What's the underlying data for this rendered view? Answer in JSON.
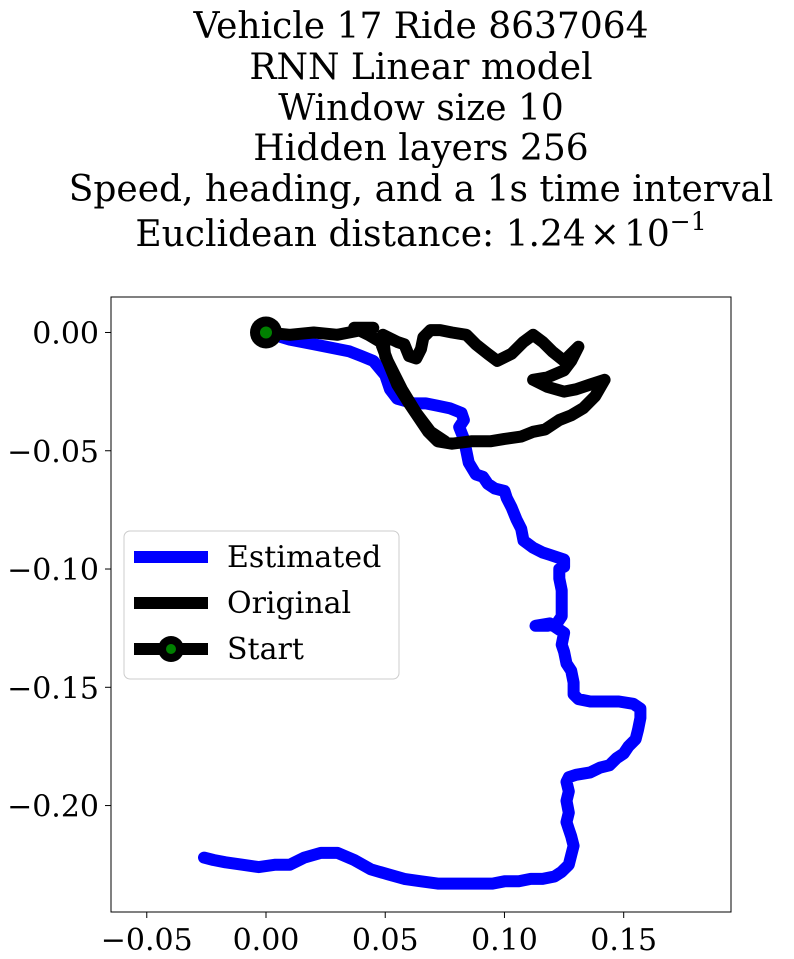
{
  "chart_data": {
    "type": "line",
    "title_lines": [
      "Vehicle 17 Ride 8637064",
      "RNN Linear model",
      "Window size 10",
      "Hidden layers 256",
      "Speed, heading, and a 1s time interval"
    ],
    "metric_label": "Euclidean distance: ",
    "metric_mantissa": "1.24",
    "metric_times": "×",
    "metric_base": "10",
    "metric_exponent": "−1",
    "xlim": [
      -0.065,
      0.195
    ],
    "ylim": [
      -0.245,
      0.015
    ],
    "x_ticks": [
      -0.05,
      0.0,
      0.05,
      0.1,
      0.15
    ],
    "x_tick_labels": [
      "−0.05",
      "0.00",
      "0.05",
      "0.10",
      "0.15"
    ],
    "y_ticks": [
      0.0,
      -0.05,
      -0.1,
      -0.15,
      -0.2
    ],
    "y_tick_labels": [
      "0.00",
      "−0.05",
      "−0.10",
      "−0.15",
      "−0.20"
    ],
    "grid": false,
    "legend_position": "center-left",
    "series": [
      {
        "name": "Estimated",
        "color": "#0000ff",
        "points": [
          [
            0.0,
            0.0
          ],
          [
            0.01,
            -0.003
          ],
          [
            0.02,
            -0.005
          ],
          [
            0.03,
            -0.007
          ],
          [
            0.035,
            -0.008
          ],
          [
            0.04,
            -0.01
          ],
          [
            0.045,
            -0.012
          ],
          [
            0.05,
            -0.018
          ],
          [
            0.052,
            -0.024
          ],
          [
            0.055,
            -0.028
          ],
          [
            0.062,
            -0.03
          ],
          [
            0.067,
            -0.03
          ],
          [
            0.072,
            -0.031
          ],
          [
            0.077,
            -0.032
          ],
          [
            0.082,
            -0.034
          ],
          [
            0.083,
            -0.037
          ],
          [
            0.081,
            -0.04
          ],
          [
            0.083,
            -0.045
          ],
          [
            0.084,
            -0.05
          ],
          [
            0.085,
            -0.055
          ],
          [
            0.088,
            -0.06
          ],
          [
            0.091,
            -0.061
          ],
          [
            0.093,
            -0.064
          ],
          [
            0.096,
            -0.066
          ],
          [
            0.1,
            -0.067
          ],
          [
            0.101,
            -0.07
          ],
          [
            0.103,
            -0.074
          ],
          [
            0.105,
            -0.079
          ],
          [
            0.107,
            -0.083
          ],
          [
            0.108,
            -0.088
          ],
          [
            0.112,
            -0.091
          ],
          [
            0.116,
            -0.093
          ],
          [
            0.119,
            -0.094
          ],
          [
            0.122,
            -0.095
          ],
          [
            0.125,
            -0.096
          ],
          [
            0.125,
            -0.099
          ],
          [
            0.123,
            -0.1
          ],
          [
            0.123,
            -0.104
          ],
          [
            0.124,
            -0.109
          ],
          [
            0.124,
            -0.114
          ],
          [
            0.124,
            -0.12
          ],
          [
            0.122,
            -0.123
          ],
          [
            0.118,
            -0.124
          ],
          [
            0.113,
            -0.124
          ],
          [
            0.119,
            -0.123
          ],
          [
            0.125,
            -0.127
          ],
          [
            0.124,
            -0.132
          ],
          [
            0.125,
            -0.135
          ],
          [
            0.126,
            -0.14
          ],
          [
            0.128,
            -0.143
          ],
          [
            0.129,
            -0.148
          ],
          [
            0.129,
            -0.153
          ],
          [
            0.131,
            -0.155
          ],
          [
            0.136,
            -0.156
          ],
          [
            0.142,
            -0.156
          ],
          [
            0.148,
            -0.156
          ],
          [
            0.154,
            -0.157
          ],
          [
            0.157,
            -0.159
          ],
          [
            0.157,
            -0.163
          ],
          [
            0.156,
            -0.168
          ],
          [
            0.155,
            -0.172
          ],
          [
            0.152,
            -0.175
          ],
          [
            0.15,
            -0.178
          ],
          [
            0.147,
            -0.18
          ],
          [
            0.144,
            -0.183
          ],
          [
            0.14,
            -0.184
          ],
          [
            0.136,
            -0.186
          ],
          [
            0.13,
            -0.187
          ],
          [
            0.127,
            -0.188
          ],
          [
            0.126,
            -0.19
          ],
          [
            0.127,
            -0.194
          ],
          [
            0.126,
            -0.198
          ],
          [
            0.127,
            -0.203
          ],
          [
            0.126,
            -0.207
          ],
          [
            0.127,
            -0.21
          ],
          [
            0.128,
            -0.213
          ],
          [
            0.129,
            -0.217
          ],
          [
            0.128,
            -0.221
          ],
          [
            0.127,
            -0.225
          ],
          [
            0.124,
            -0.228
          ],
          [
            0.121,
            -0.23
          ],
          [
            0.116,
            -0.231
          ],
          [
            0.111,
            -0.231
          ],
          [
            0.106,
            -0.232
          ],
          [
            0.1,
            -0.232
          ],
          [
            0.095,
            -0.233
          ],
          [
            0.09,
            -0.233
          ],
          [
            0.084,
            -0.233
          ],
          [
            0.078,
            -0.233
          ],
          [
            0.072,
            -0.233
          ],
          [
            0.065,
            -0.232
          ],
          [
            0.058,
            -0.231
          ],
          [
            0.051,
            -0.229
          ],
          [
            0.044,
            -0.227
          ],
          [
            0.037,
            -0.223
          ],
          [
            0.03,
            -0.22
          ],
          [
            0.023,
            -0.22
          ],
          [
            0.016,
            -0.222
          ],
          [
            0.01,
            -0.225
          ],
          [
            0.004,
            -0.225
          ],
          [
            -0.003,
            -0.226
          ],
          [
            -0.01,
            -0.225
          ],
          [
            -0.017,
            -0.224
          ],
          [
            -0.022,
            -0.223
          ],
          [
            -0.026,
            -0.222
          ]
        ]
      },
      {
        "name": "Original",
        "color": "#000000",
        "points": [
          [
            0.0,
            0.0
          ],
          [
            0.01,
            -0.001
          ],
          [
            0.02,
            0.0
          ],
          [
            0.03,
            -0.001
          ],
          [
            0.04,
            0.001
          ],
          [
            0.045,
            0.002
          ],
          [
            0.037,
            0.002
          ],
          [
            0.043,
            -0.001
          ],
          [
            0.048,
            -0.004
          ],
          [
            0.051,
            -0.012
          ],
          [
            0.055,
            -0.022
          ],
          [
            0.06,
            -0.03
          ],
          [
            0.064,
            -0.036
          ],
          [
            0.068,
            -0.042
          ],
          [
            0.072,
            -0.046
          ],
          [
            0.078,
            -0.047
          ],
          [
            0.086,
            -0.046
          ],
          [
            0.094,
            -0.046
          ],
          [
            0.1,
            -0.045
          ],
          [
            0.107,
            -0.044
          ],
          [
            0.112,
            -0.042
          ],
          [
            0.117,
            -0.041
          ],
          [
            0.123,
            -0.037
          ],
          [
            0.128,
            -0.035
          ],
          [
            0.133,
            -0.032
          ],
          [
            0.138,
            -0.027
          ],
          [
            0.142,
            -0.02
          ],
          [
            0.136,
            -0.022
          ],
          [
            0.13,
            -0.024
          ],
          [
            0.125,
            -0.025
          ],
          [
            0.118,
            -0.023
          ],
          [
            0.112,
            -0.02
          ],
          [
            0.118,
            -0.019
          ],
          [
            0.125,
            -0.016
          ],
          [
            0.128,
            -0.012
          ],
          [
            0.131,
            -0.006
          ],
          [
            0.125,
            -0.012
          ],
          [
            0.12,
            -0.008
          ],
          [
            0.116,
            -0.004
          ],
          [
            0.112,
            -0.001
          ],
          [
            0.108,
            -0.004
          ],
          [
            0.103,
            -0.009
          ],
          [
            0.097,
            -0.012
          ],
          [
            0.093,
            -0.009
          ],
          [
            0.088,
            -0.005
          ],
          [
            0.084,
            -0.001
          ],
          [
            0.078,
            0.0
          ],
          [
            0.073,
            0.001
          ],
          [
            0.069,
            0.001
          ],
          [
            0.066,
            -0.002
          ],
          [
            0.065,
            -0.007
          ],
          [
            0.063,
            -0.011
          ],
          [
            0.06,
            -0.01
          ],
          [
            0.058,
            -0.005
          ],
          [
            0.055,
            -0.004
          ],
          [
            0.049,
            -0.001
          ],
          [
            0.05,
            -0.01
          ],
          [
            0.057,
            -0.024
          ],
          [
            0.063,
            -0.034
          ],
          [
            0.069,
            -0.042
          ],
          [
            0.075,
            -0.046
          ]
        ]
      }
    ],
    "start": {
      "name": "Start",
      "x": 0.0,
      "y": 0.0,
      "ring_color": "#000000",
      "dot_color": "#008000"
    }
  }
}
